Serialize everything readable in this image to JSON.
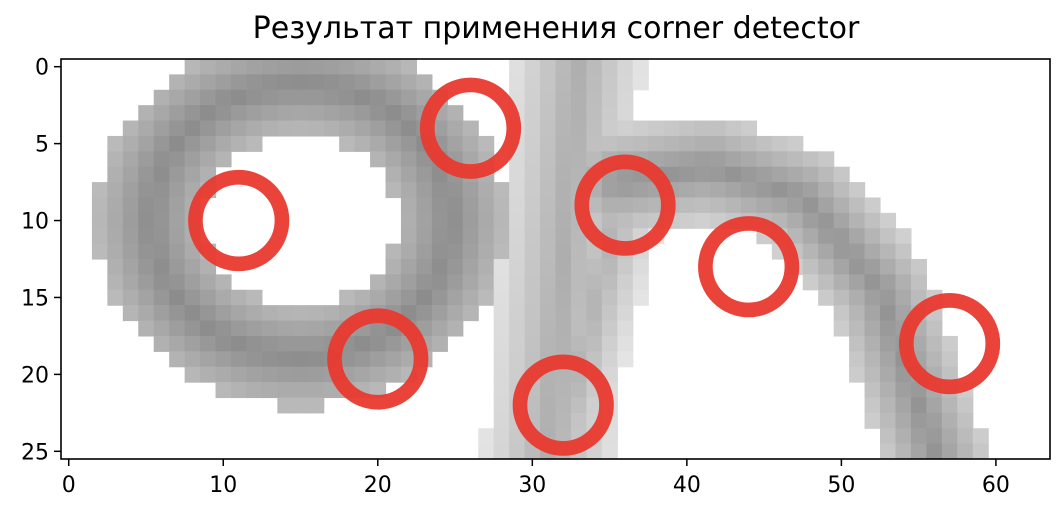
{
  "chart_data": {
    "type": "heatmap",
    "title": "Результат применения corner detector",
    "xlabel": "",
    "ylabel": "",
    "xlim": [
      -0.5,
      63.5
    ],
    "ylim": [
      25.5,
      -0.5
    ],
    "xticks": [
      0,
      10,
      20,
      30,
      40,
      50,
      60
    ],
    "yticks": [
      0,
      5,
      10,
      15,
      20,
      25
    ],
    "colormap": "gray_r",
    "marker_color": "#e8392f",
    "corners": [
      {
        "x": 26,
        "y": 4
      },
      {
        "x": 11,
        "y": 10
      },
      {
        "x": 36,
        "y": 9
      },
      {
        "x": 44,
        "y": 13
      },
      {
        "x": 57,
        "y": 18
      },
      {
        "x": 20,
        "y": 19
      },
      {
        "x": 32,
        "y": 22
      }
    ],
    "corner_radius_px": 2.8
  }
}
